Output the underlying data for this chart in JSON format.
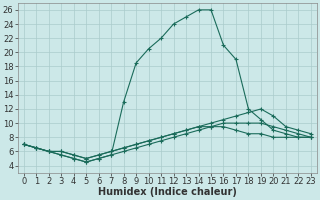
{
  "xlabel": "Humidex (Indice chaleur)",
  "ylabel": "",
  "background_color": "#cce8e8",
  "grid_color": "#aacccc",
  "line_color": "#1a6b5a",
  "xlim": [
    -0.5,
    23.5
  ],
  "ylim": [
    3,
    27
  ],
  "xticks": [
    0,
    1,
    2,
    3,
    4,
    5,
    6,
    7,
    8,
    9,
    10,
    11,
    12,
    13,
    14,
    15,
    16,
    17,
    18,
    19,
    20,
    21,
    22,
    23
  ],
  "yticks": [
    4,
    6,
    8,
    10,
    12,
    14,
    16,
    18,
    20,
    22,
    24,
    26
  ],
  "series": [
    {
      "x": [
        0,
        1,
        2,
        3,
        4,
        5,
        6,
        7,
        8,
        9,
        10,
        11,
        12,
        13,
        14,
        15,
        16,
        17,
        18,
        19,
        20,
        21,
        22,
        23
      ],
      "y": [
        7,
        6.5,
        6,
        5.5,
        5,
        4.5,
        5,
        5.5,
        13,
        18.5,
        20.5,
        22,
        24,
        25,
        26,
        26,
        21,
        19,
        12,
        10.5,
        9,
        8.5,
        8,
        8
      ]
    },
    {
      "x": [
        0,
        1,
        2,
        3,
        4,
        5,
        6,
        7,
        8,
        9,
        10,
        11,
        12,
        13,
        14,
        15,
        16,
        17,
        18,
        19,
        20,
        21,
        22,
        23
      ],
      "y": [
        7,
        6.5,
        6,
        5.5,
        5,
        4.5,
        5,
        5.5,
        6,
        6.5,
        7,
        7.5,
        8,
        8.5,
        9,
        9.5,
        9.5,
        9,
        8.5,
        8.5,
        8,
        8,
        8,
        8
      ]
    },
    {
      "x": [
        0,
        1,
        2,
        3,
        4,
        5,
        6,
        7,
        8,
        9,
        10,
        11,
        12,
        13,
        14,
        15,
        16,
        17,
        18,
        19,
        20,
        21,
        22,
        23
      ],
      "y": [
        7,
        6.5,
        6,
        6,
        5.5,
        5,
        5.5,
        6,
        6.5,
        7,
        7.5,
        8,
        8.5,
        9,
        9.5,
        9.5,
        10,
        10,
        10,
        10,
        9.5,
        9,
        8.5,
        8
      ]
    },
    {
      "x": [
        0,
        1,
        2,
        3,
        4,
        5,
        6,
        7,
        8,
        9,
        10,
        11,
        12,
        13,
        14,
        15,
        16,
        17,
        18,
        19,
        20,
        21,
        22,
        23
      ],
      "y": [
        7,
        6.5,
        6,
        6,
        5.5,
        5,
        5.5,
        6,
        6.5,
        7,
        7.5,
        8,
        8.5,
        9,
        9.5,
        10,
        10.5,
        11,
        11.5,
        12,
        11,
        9.5,
        9,
        8.5
      ]
    }
  ],
  "marker": "+",
  "marker_size": 3,
  "linewidth": 0.8,
  "font_size": 6,
  "xlabel_fontsize": 7
}
